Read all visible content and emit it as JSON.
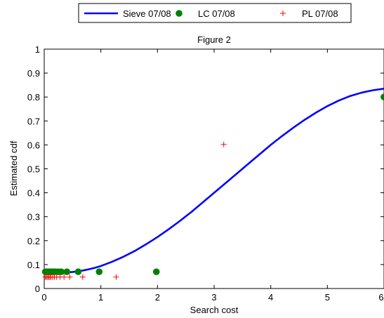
{
  "chart_data": {
    "type": "line",
    "title": "Figure 2",
    "xlabel": "Search cost",
    "ylabel": "Estimated cdf",
    "xlim": [
      0,
      6
    ],
    "ylim": [
      0,
      1
    ],
    "xticks": [
      "0",
      "1",
      "2",
      "3",
      "4",
      "5",
      "6"
    ],
    "yticks": [
      "0",
      "0.1",
      "0.2",
      "0.3",
      "0.4",
      "0.5",
      "0.6",
      "0.7",
      "0.8",
      "0.9",
      "1"
    ],
    "grid": false,
    "legend_position": "top-outside",
    "series": [
      {
        "name": "Sieve 07/08",
        "kind": "line",
        "color": "#0000ff",
        "x": [
          0.03,
          0.1,
          0.2,
          0.3,
          0.4,
          0.5,
          0.6,
          0.7,
          0.8,
          0.9,
          1.0,
          1.2,
          1.4,
          1.6,
          1.8,
          2.0,
          2.2,
          2.4,
          2.6,
          2.8,
          3.0,
          3.2,
          3.4,
          3.6,
          3.8,
          4.0,
          4.2,
          4.4,
          4.6,
          4.8,
          5.0,
          5.2,
          5.4,
          5.6,
          5.8,
          6.0
        ],
        "y": [
          0.065,
          0.065,
          0.065,
          0.066,
          0.067,
          0.069,
          0.072,
          0.076,
          0.081,
          0.087,
          0.094,
          0.112,
          0.133,
          0.157,
          0.185,
          0.215,
          0.248,
          0.283,
          0.32,
          0.36,
          0.4,
          0.44,
          0.48,
          0.52,
          0.56,
          0.6,
          0.637,
          0.672,
          0.705,
          0.735,
          0.762,
          0.785,
          0.804,
          0.818,
          0.828,
          0.835
        ]
      },
      {
        "name": "LC 07/08",
        "kind": "scatter",
        "marker": "circle",
        "color": "#008000",
        "x": [
          0.02,
          0.05,
          0.08,
          0.11,
          0.14,
          0.17,
          0.2,
          0.25,
          0.3,
          0.4,
          0.6,
          0.97,
          1.98,
          6.0
        ],
        "y": [
          0.07,
          0.07,
          0.07,
          0.07,
          0.07,
          0.07,
          0.07,
          0.07,
          0.07,
          0.07,
          0.07,
          0.07,
          0.07,
          0.8
        ]
      },
      {
        "name": "PL 07/08",
        "kind": "scatter",
        "marker": "plus",
        "color": "#ff0000",
        "x": [
          0.02,
          0.04,
          0.06,
          0.08,
          0.1,
          0.12,
          0.15,
          0.18,
          0.22,
          0.28,
          0.35,
          0.45,
          0.68,
          1.27,
          3.17
        ],
        "y": [
          0.048,
          0.048,
          0.048,
          0.048,
          0.048,
          0.048,
          0.048,
          0.048,
          0.048,
          0.048,
          0.048,
          0.048,
          0.048,
          0.048,
          0.602
        ]
      }
    ]
  }
}
